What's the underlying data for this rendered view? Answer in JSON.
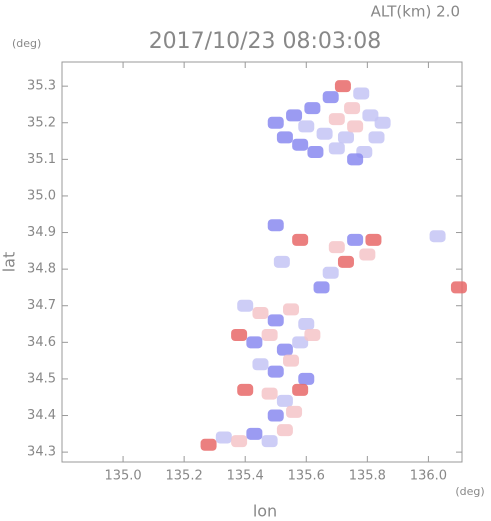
{
  "chart_data": {
    "type": "scatter",
    "title": "2017/10/23 08:03:08",
    "subtitle": "ALT(km) 2.0",
    "y_unit": "(deg)",
    "x_unit": "(deg)",
    "xlabel": "lon",
    "ylabel": "lat",
    "xlim": [
      134.8,
      136.11
    ],
    "ylim": [
      34.273,
      35.366
    ],
    "xticks": [
      {
        "value": 135,
        "label": "135.0"
      },
      135.2,
      135.4,
      135.6,
      135.8,
      {
        "value": 136,
        "label": "136.0"
      }
    ],
    "yticks": [
      34.3,
      34.4,
      34.5,
      34.6,
      34.7,
      34.8,
      34.9,
      {
        "value": 35,
        "label": "35.0"
      },
      35.1,
      35.2,
      35.3
    ],
    "x": [
      135.5,
      135.53,
      135.56,
      135.58,
      135.6,
      135.62,
      135.63,
      135.66,
      135.68,
      135.7,
      135.72,
      135.73,
      135.75,
      135.76,
      135.78,
      135.79,
      135.81,
      135.83,
      135.85,
      135.76,
      135.7,
      135.5,
      135.52,
      135.58,
      135.7,
      135.76,
      135.8,
      135.82,
      135.68,
      135.73,
      135.65,
      135.4,
      135.45,
      135.5,
      135.55,
      135.6,
      135.38,
      135.43,
      135.48,
      135.53,
      135.58,
      135.62,
      135.45,
      135.5,
      135.55,
      135.6,
      135.48,
      135.53,
      135.58,
      135.5,
      135.56,
      135.4,
      135.28,
      135.33,
      135.38,
      135.43,
      135.48,
      135.53,
      136.03,
      136.1
    ],
    "y": [
      35.2,
      35.16,
      35.22,
      35.14,
      35.19,
      35.24,
      35.12,
      35.17,
      35.27,
      35.21,
      35.3,
      35.16,
      35.24,
      35.19,
      35.28,
      35.12,
      35.22,
      35.16,
      35.2,
      35.1,
      35.13,
      34.92,
      34.82,
      34.88,
      34.86,
      34.88,
      34.84,
      34.88,
      34.79,
      34.82,
      34.75,
      34.7,
      34.68,
      34.66,
      34.69,
      34.65,
      34.62,
      34.6,
      34.62,
      34.58,
      34.6,
      34.62,
      34.54,
      34.52,
      34.55,
      34.5,
      34.46,
      34.44,
      34.47,
      34.4,
      34.41,
      34.47,
      34.32,
      34.34,
      34.33,
      34.35,
      34.33,
      34.36,
      34.89,
      34.75
    ],
    "colors": [
      "#8a8af0",
      "#8a8af0",
      "#8a8af0",
      "#8a8af0",
      "#c4c4f4",
      "#8a8af0",
      "#8a8af0",
      "#c4c4f4",
      "#8a8af0",
      "#f4c4c8",
      "#e86868",
      "#c4c4f4",
      "#f4c4c8",
      "#f4c4c8",
      "#c4c4f4",
      "#c4c4f4",
      "#c4c4f4",
      "#c4c4f4",
      "#c4c4f4",
      "#8a8af0",
      "#c4c4f4",
      "#8a8af0",
      "#c4c4f4",
      "#e86868",
      "#f4c4c8",
      "#8a8af0",
      "#f4c4c8",
      "#e86868",
      "#c4c4f4",
      "#e86868",
      "#8a8af0",
      "#c4c4f4",
      "#f4c4c8",
      "#8a8af0",
      "#f4c4c8",
      "#c4c4f4",
      "#e86868",
      "#8a8af0",
      "#f4c4c8",
      "#8a8af0",
      "#c4c4f4",
      "#f4c4c8",
      "#c4c4f4",
      "#8a8af0",
      "#f4c4c8",
      "#8a8af0",
      "#f4c4c8",
      "#c4c4f4",
      "#e86868",
      "#8a8af0",
      "#f4c4c8",
      "#e86868",
      "#e86868",
      "#c4c4f4",
      "#f4c4c8",
      "#8a8af0",
      "#c4c4f4",
      "#f4c4c8",
      "#c4c4f4",
      "#e86868"
    ]
  }
}
